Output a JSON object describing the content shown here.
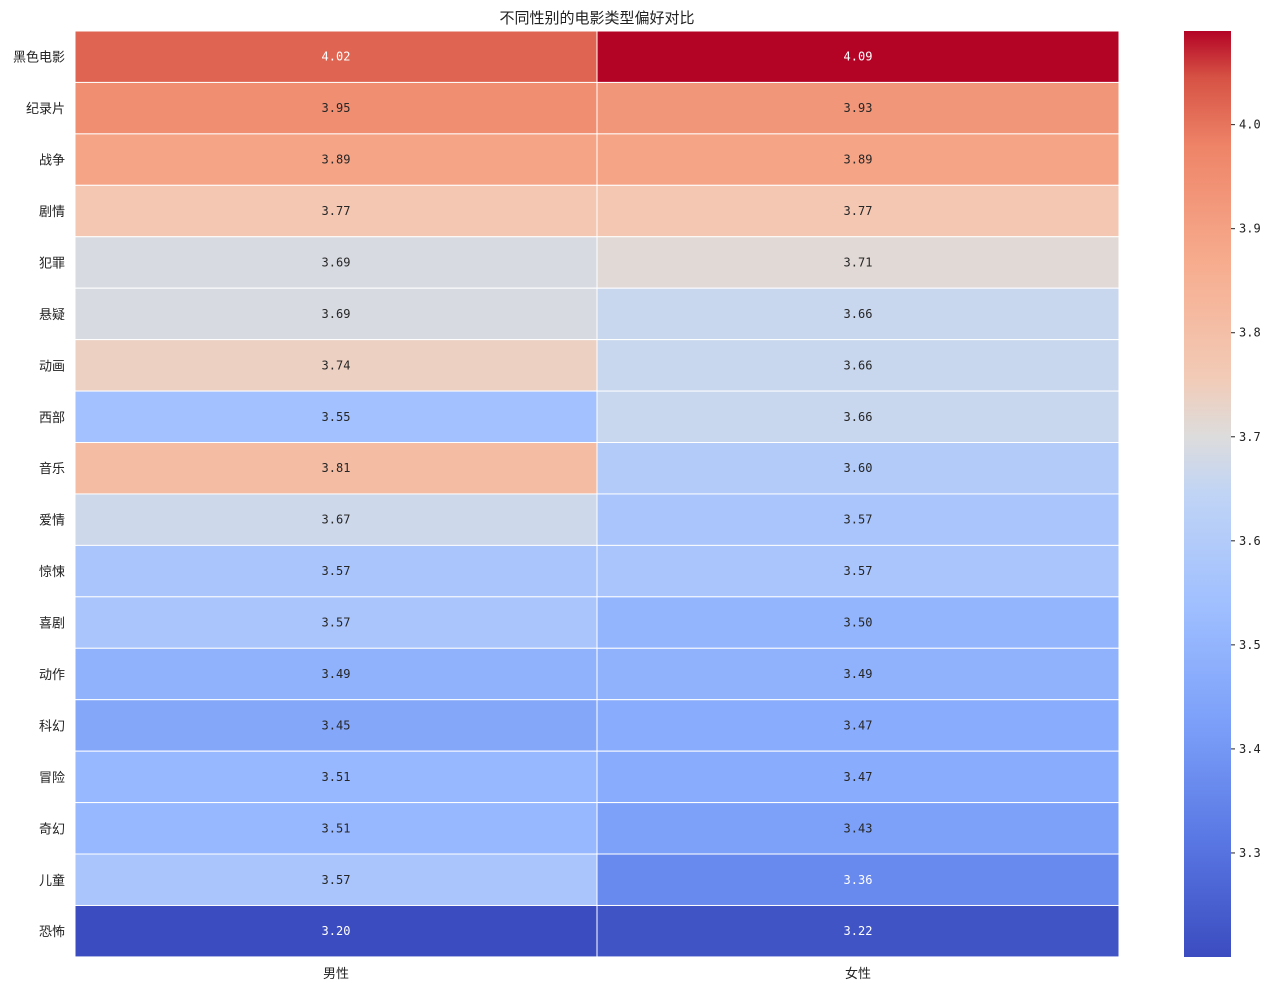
{
  "chart_data": {
    "type": "heatmap",
    "title": "不同性别的电影类型偏好对比",
    "columns": [
      "男性",
      "女性"
    ],
    "rows": [
      "黑色电影",
      "纪录片",
      "战争",
      "剧情",
      "犯罪",
      "悬疑",
      "动画",
      "西部",
      "音乐",
      "爱情",
      "惊悚",
      "喜剧",
      "动作",
      "科幻",
      "冒险",
      "奇幻",
      "儿童",
      "恐怖"
    ],
    "values": [
      [
        4.02,
        4.09
      ],
      [
        3.95,
        3.93
      ],
      [
        3.89,
        3.89
      ],
      [
        3.77,
        3.77
      ],
      [
        3.69,
        3.71
      ],
      [
        3.69,
        3.66
      ],
      [
        3.74,
        3.66
      ],
      [
        3.55,
        3.66
      ],
      [
        3.81,
        3.6
      ],
      [
        3.67,
        3.57
      ],
      [
        3.57,
        3.57
      ],
      [
        3.57,
        3.5
      ],
      [
        3.49,
        3.49
      ],
      [
        3.45,
        3.47
      ],
      [
        3.51,
        3.47
      ],
      [
        3.51,
        3.43
      ],
      [
        3.57,
        3.36
      ],
      [
        3.2,
        3.22
      ]
    ],
    "colormap": "coolwarm",
    "vmin": 3.2,
    "vmax": 4.09,
    "colorbar_ticks": [
      3.3,
      3.4,
      3.5,
      3.6,
      3.7,
      3.8,
      3.9,
      4.0
    ],
    "grid_line_color": "#ffffff"
  }
}
